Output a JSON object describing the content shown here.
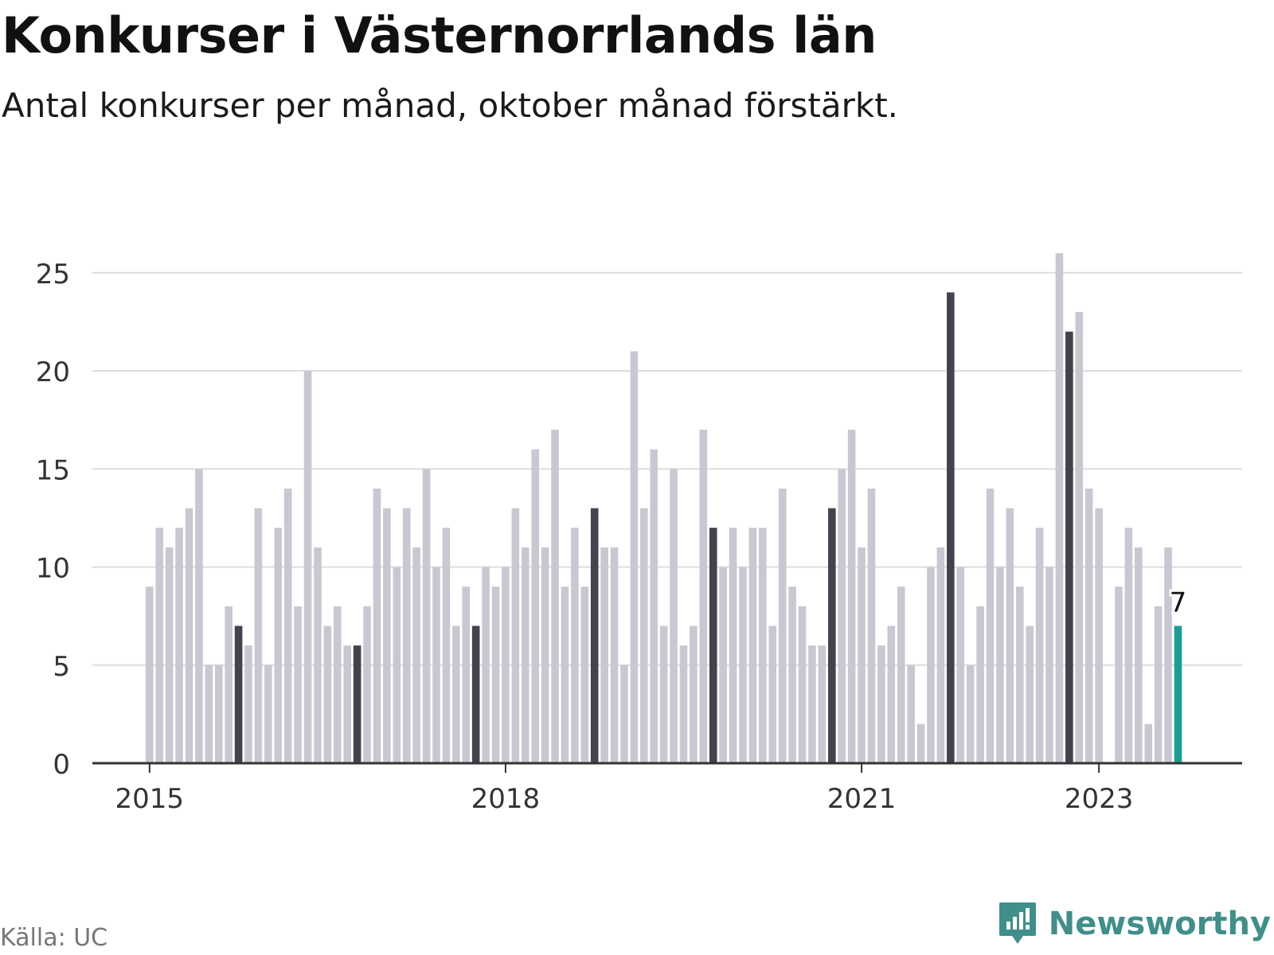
{
  "header": {
    "title": "Konkurser i Västernorrlands län",
    "subtitle": "Antal konkurser per månad, oktober månad förstärkt."
  },
  "footer": {
    "source": "Källa: UC",
    "brand": "Newsworthy",
    "brand_icon": "newsworthy-logo-icon"
  },
  "colors": {
    "bar_default": "#c8c8d2",
    "bar_october": "#43434f",
    "bar_latest": "#1a9e94",
    "grid": "#dddddd",
    "axis": "#333333",
    "brand": "#3f8f8a"
  },
  "chart_data": {
    "type": "bar",
    "title": "Konkurser i Västernorrlands län",
    "subtitle": "Antal konkurser per månad, oktober månad förstärkt.",
    "x_start": "2015-01",
    "x_ticks": [
      "2015",
      "2018",
      "2021",
      "2023"
    ],
    "y_ticks": [
      0,
      5,
      10,
      15,
      20,
      25
    ],
    "ylim": [
      0,
      27
    ],
    "grid": true,
    "highlight": "October months darker; latest month colored",
    "values": [
      9,
      12,
      11,
      12,
      13,
      15,
      5,
      5,
      8,
      7,
      6,
      13,
      5,
      12,
      14,
      8,
      20,
      11,
      7,
      8,
      6,
      6,
      8,
      14,
      13,
      10,
      13,
      11,
      15,
      10,
      12,
      7,
      9,
      7,
      10,
      9,
      10,
      13,
      11,
      16,
      11,
      17,
      9,
      12,
      9,
      13,
      11,
      11,
      5,
      21,
      13,
      16,
      7,
      15,
      6,
      7,
      17,
      12,
      10,
      12,
      10,
      12,
      12,
      7,
      14,
      9,
      8,
      6,
      6,
      13,
      15,
      17,
      11,
      14,
      6,
      7,
      9,
      5,
      2,
      10,
      11,
      24,
      10,
      5,
      8,
      14,
      10,
      13,
      9,
      7,
      12,
      10,
      26,
      22,
      23,
      14,
      13,
      0,
      9,
      12,
      11,
      2,
      8,
      11,
      7
    ],
    "latest_label": "7"
  }
}
